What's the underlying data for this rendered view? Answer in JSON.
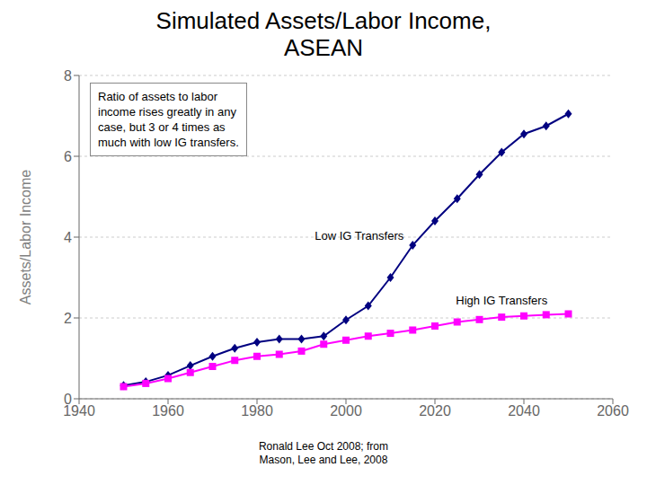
{
  "chart_data": {
    "type": "line",
    "title": "Simulated Assets/Labor Income,\nASEAN",
    "subtitle": "Ronald Lee Oct 2008; from\nMason, Lee and Lee, 2008",
    "ylabel": "Assets/Labor Income",
    "annotation": "Ratio of assets to labor\nincome rises greatly in any\ncase, but 3 or 4 times as\nmuch with low IG transfers.",
    "x": [
      1950,
      1955,
      1960,
      1965,
      1970,
      1975,
      1980,
      1985,
      1990,
      1995,
      2000,
      2005,
      2010,
      2015,
      2020,
      2025,
      2030,
      2035,
      2040,
      2045,
      2050
    ],
    "series": [
      {
        "name": "Low IG Transfers",
        "color": "#000080",
        "marker": "diamond",
        "values": [
          0.33,
          0.42,
          0.58,
          0.82,
          1.05,
          1.25,
          1.4,
          1.48,
          1.48,
          1.55,
          1.95,
          2.3,
          3.0,
          3.8,
          4.4,
          4.95,
          5.55,
          6.1,
          6.55,
          6.75,
          7.05
        ]
      },
      {
        "name": "High IG Transfers",
        "color": "#ff00ff",
        "marker": "square",
        "values": [
          0.3,
          0.38,
          0.5,
          0.65,
          0.8,
          0.95,
          1.05,
          1.1,
          1.18,
          1.35,
          1.45,
          1.55,
          1.62,
          1.7,
          1.8,
          1.9,
          1.96,
          2.02,
          2.05,
          2.08,
          2.1
        ]
      }
    ],
    "xlim": [
      1940,
      2060
    ],
    "ylim": [
      0,
      8
    ],
    "xticks": [
      1940,
      1960,
      1980,
      2000,
      2020,
      2040,
      2060
    ],
    "yticks": [
      0,
      2,
      4,
      6,
      8
    ],
    "grid": "y"
  }
}
